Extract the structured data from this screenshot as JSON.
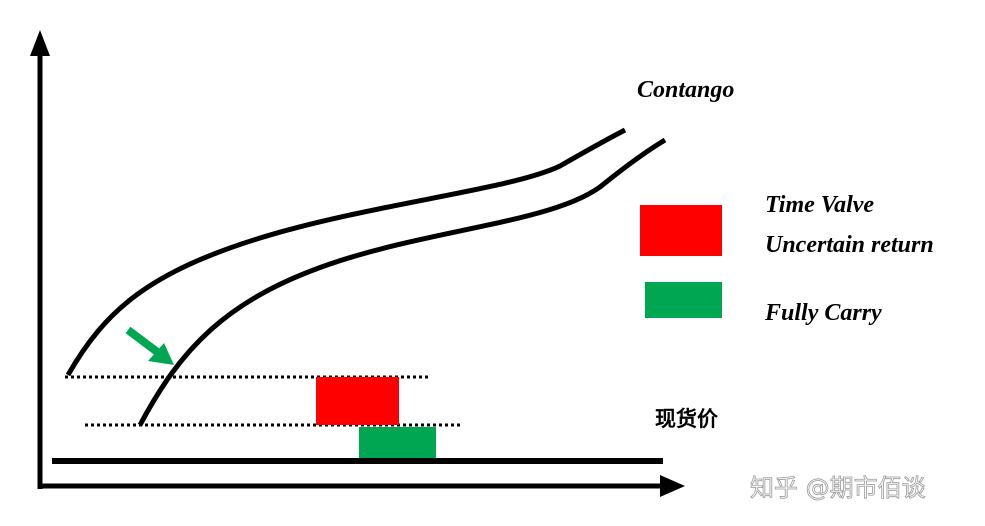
{
  "labels": {
    "curve": "Contango",
    "spot_price": "现货价"
  },
  "legend": [
    {
      "label_lines": [
        "Time Valve",
        "Uncertain return"
      ],
      "color": "#ff0000"
    },
    {
      "label_lines": [
        "Fully Carry"
      ],
      "color": "#00a651"
    }
  ],
  "arrow_color": "#00a651",
  "watermark": "知乎 @期市佰谈"
}
